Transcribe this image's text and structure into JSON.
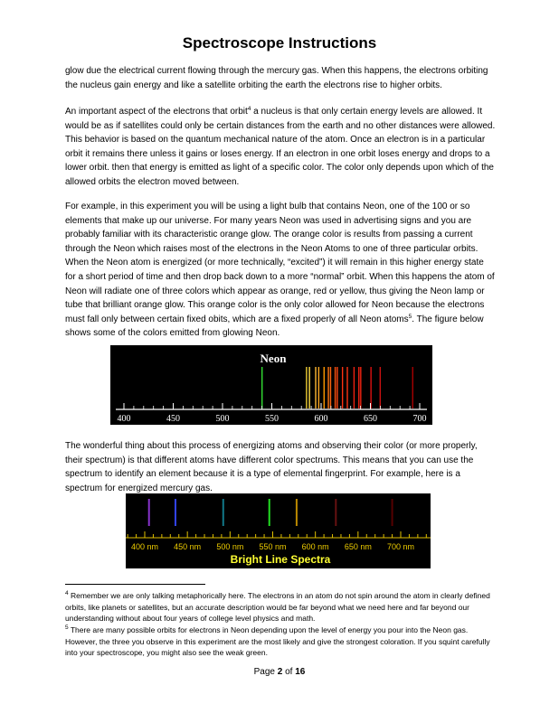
{
  "title": "Spectroscope Instructions",
  "para1": "glow due the electrical current flowing through the mercury gas.  When this happens, the electrons orbiting the nucleus gain energy and like a satellite orbiting the earth the electrons rise to higher orbits.",
  "para2": {
    "before": "An important aspect of the electrons that orbit",
    "ref": "4",
    "after": " a nucleus is that only certain energy levels are allowed.  It would be as if satellites could only be certain distances from the earth and no other distances were allowed.  This behavior is based on the quantum mechanical nature of the atom.  Once an electron is in a particular orbit it remains there unless it gains or loses energy.  If an electron in one orbit loses energy and drops to a lower orbit. then that energy is emitted as light of a specific color.  The color only depends upon which of the allowed orbits the electron moved between."
  },
  "para3": {
    "before": "For example, in this experiment you will be using a light bulb that contains Neon, one of the 100 or so elements that make up our universe.  For many years Neon was used in advertising signs and you are probably familiar with its characteristic orange glow.  The orange color is results from passing a current through the Neon which raises most of the electrons in the Neon Atoms to one of three particular orbits.  When the Neon atom is energized (or more technically, “excited”) it will remain in this higher energy state for a short period of time and then drop back down to a more “normal” orbit.  When this happens the atom of Neon will radiate one of three colors which appear as orange, red or yellow, thus giving the Neon lamp or tube that brilliant orange glow.  This orange color is the only color allowed for Neon because the electrons must fall only between certain fixed obits, which are a fixed properly of all Neon atoms",
    "ref": "5",
    "after": ".  The figure below shows some of the colors emitted from glowing Neon."
  },
  "neon_figure": {
    "label": "Neon",
    "ticks": [
      "400",
      "450",
      "500",
      "550",
      "600",
      "650",
      "700"
    ],
    "lines": [
      {
        "nm": 540.1,
        "color": "#33dd33"
      },
      {
        "nm": 585.2,
        "color": "#eecc33"
      },
      {
        "nm": 588.2,
        "color": "#ffdd44"
      },
      {
        "nm": 594.5,
        "color": "#ffbb33"
      },
      {
        "nm": 597.6,
        "color": "#ffaa22"
      },
      {
        "nm": 603.0,
        "color": "#ff9900"
      },
      {
        "nm": 607.4,
        "color": "#ff7711"
      },
      {
        "nm": 609.6,
        "color": "#ff6611"
      },
      {
        "nm": 614.3,
        "color": "#ff5511"
      },
      {
        "nm": 616.4,
        "color": "#ff4411"
      },
      {
        "nm": 621.7,
        "color": "#ff3311"
      },
      {
        "nm": 626.6,
        "color": "#ff3311"
      },
      {
        "nm": 633.4,
        "color": "#ee2211"
      },
      {
        "nm": 638.3,
        "color": "#ee2211"
      },
      {
        "nm": 640.2,
        "color": "#ee2211"
      },
      {
        "nm": 650.6,
        "color": "#dd1111"
      },
      {
        "nm": 659.9,
        "color": "#cc1111"
      },
      {
        "nm": 692.9,
        "color": "#aa0000"
      }
    ]
  },
  "para4": "The wonderful thing about this process of energizing atoms and observing their color (or more properly, their spectrum) is that different atoms have different color spectrums.  This means that you can use the spectrum to identify an element because it is a type of elemental fingerprint.  For example, here is a spectrum for energized mercury gas.",
  "mercury_figure": {
    "ticks": [
      "400 nm",
      "450 nm",
      "500 nm",
      "550 nm",
      "600 nm",
      "650 nm",
      "700 nm"
    ],
    "caption": "Bright Line Spectra",
    "lines": [
      {
        "nm": 405,
        "color": "#8833cc"
      },
      {
        "nm": 436,
        "color": "#3344ee"
      },
      {
        "nm": 492,
        "color": "#117788"
      },
      {
        "nm": 546,
        "color": "#22dd22"
      },
      {
        "nm": 578,
        "color": "#bb8800"
      },
      {
        "nm": 624,
        "color": "#661111"
      },
      {
        "nm": 690,
        "color": "#550000"
      }
    ]
  },
  "footnotes": [
    {
      "num": "4",
      "text": " Remember we are only talking metaphorically here.  The electrons in an atom do not spin around the atom in clearly defined orbits, like planets or satellites, but an accurate description would be far beyond what we need here and far beyond our understanding without about four years of college level physics and math."
    },
    {
      "num": "5",
      "text": " There are many possible orbits for electrons in Neon depending upon the level of energy you pour into the Neon gas.  However, the three you observe in this experiment are the most likely and give the strongest coloration.  If you squint carefully into your spectroscope, you might also see the weak green."
    }
  ],
  "footer": {
    "page_word": "Page",
    "page": "2",
    "of_word": "of",
    "total": "16"
  }
}
